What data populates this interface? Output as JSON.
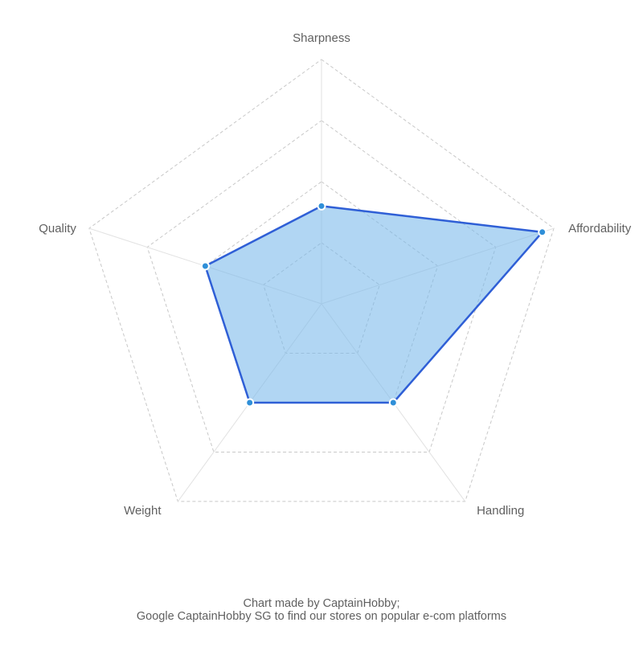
{
  "chart_data": {
    "type": "radar",
    "axes": [
      "Sharpness",
      "Affordability",
      "Handling",
      "Weight",
      "Quality"
    ],
    "series": [
      {
        "values": [
          4,
          9.5,
          5,
          5,
          5
        ]
      }
    ],
    "rlim": [
      0,
      10
    ],
    "grid_levels": [
      2.5,
      5,
      7.5,
      10
    ],
    "grid": true,
    "legend": "none"
  },
  "footer": {
    "line1": "Chart made by CaptainHobby;",
    "line2": "Google CaptainHobby SG to find our stores on popular e-com platforms"
  },
  "colors": {
    "fill": "#79b8ea",
    "line": "#2f5fd6",
    "point": "#2f8fd8",
    "grid": "#c8c8c8",
    "text": "#606060"
  }
}
